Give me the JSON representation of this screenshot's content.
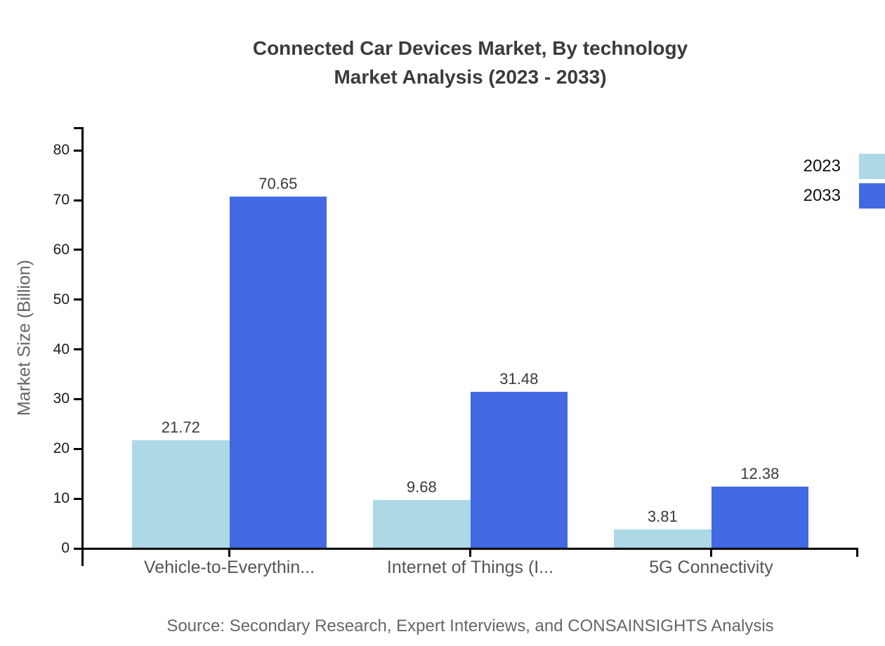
{
  "chart_data": {
    "type": "bar",
    "title": "Connected Car Devices Market, By technology",
    "subtitle": "Market Analysis (2023 - 2033)",
    "categories": [
      "Vehicle-to-Everythin...",
      "Internet of Things (I...",
      "5G Connectivity"
    ],
    "series": [
      {
        "name": "2023",
        "color": "#ADD8E6",
        "values": [
          21.72,
          9.68,
          3.81
        ]
      },
      {
        "name": "2033",
        "color": "#4169E1",
        "values": [
          70.65,
          31.48,
          12.38
        ]
      }
    ],
    "xlabel": "",
    "ylabel": "Market Size (Billion)",
    "ylim": [
      0,
      84.5
    ],
    "yticks": [
      0,
      10,
      20,
      30,
      40,
      50,
      60,
      70,
      80
    ],
    "grid": false,
    "legend_position": "top-right",
    "value_labels": true,
    "value_label_decimals": 2,
    "source": "Source: Secondary Research, Expert Interviews, and CONSAINSIGHTS Analysis"
  },
  "colors": {
    "background": "#ffffff",
    "axis": "#000000",
    "title_text": "#3b3b3b",
    "tick_label_text": "#1c1c1c",
    "category_label_text": "#555555",
    "value_label_text": "#3a3a3a",
    "y_axis_title_text": "#666666",
    "source_text": "#666666",
    "series_2023": "#ADD8E6",
    "series_2033": "#4169E1"
  }
}
